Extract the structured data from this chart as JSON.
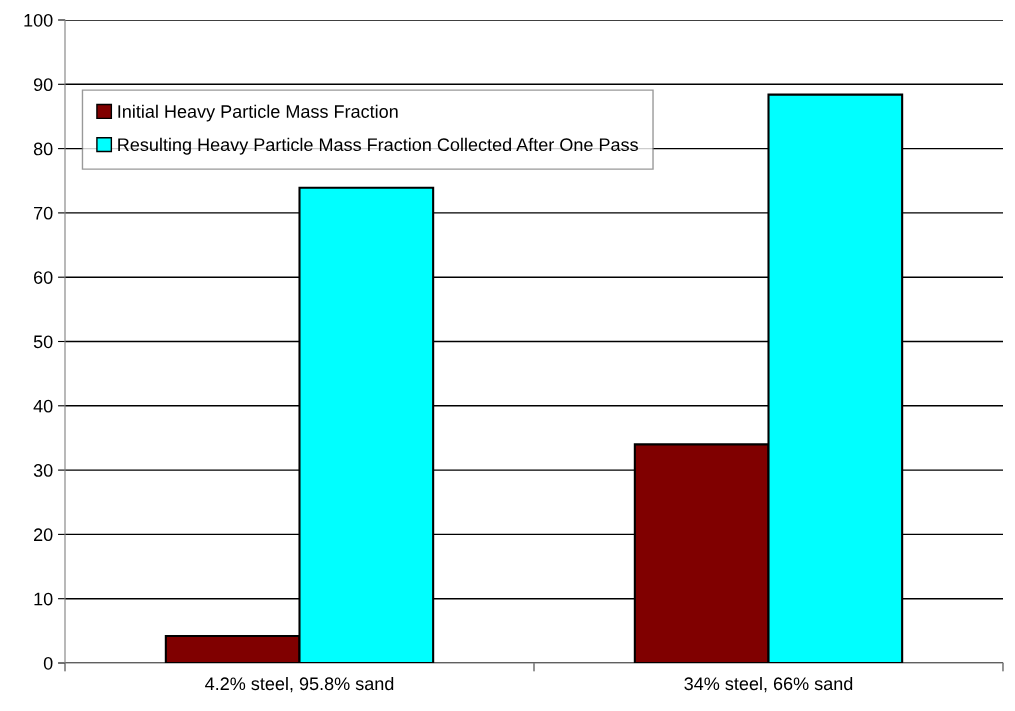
{
  "chart_data": {
    "type": "bar",
    "categories": [
      "4.2% steel, 95.8% sand",
      "34% steel, 66% sand"
    ],
    "series": [
      {
        "name": "Initial Heavy Particle Mass Fraction",
        "color": "#800000",
        "values": [
          4.2,
          34
        ]
      },
      {
        "name": "Resulting Heavy Particle Mass Fraction Collected After One Pass",
        "color": "#00ffff",
        "values": [
          73.9,
          88.4
        ]
      }
    ],
    "ylim": [
      0,
      100
    ],
    "yticks": [
      0,
      10,
      20,
      30,
      40,
      50,
      60,
      70,
      80,
      90,
      100
    ],
    "grid": "y",
    "legend": "top left"
  }
}
